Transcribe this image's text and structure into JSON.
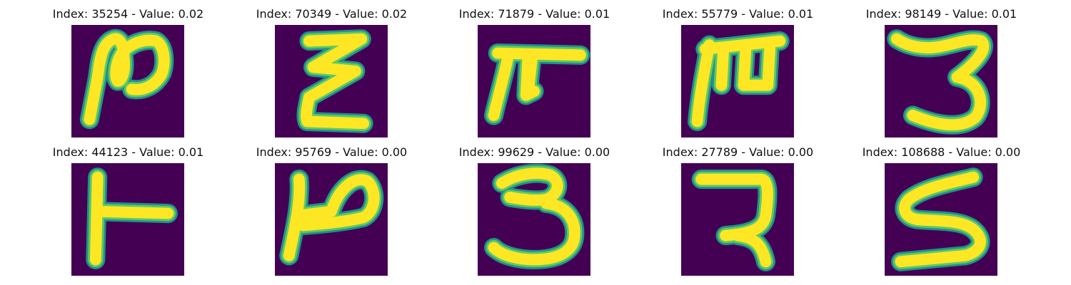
{
  "colors": {
    "background": "#440154",
    "edge": "#21918c",
    "mid": "#5ec962",
    "stroke": "#fde725"
  },
  "panels": [
    {
      "index": "35254",
      "value": "0.02",
      "title": "Index: 35254 - Value: 0.02"
    },
    {
      "index": "70349",
      "value": "0.02",
      "title": "Index: 70349 - Value: 0.02"
    },
    {
      "index": "71879",
      "value": "0.01",
      "title": "Index: 71879 - Value: 0.01"
    },
    {
      "index": "55779",
      "value": "0.01",
      "title": "Index: 55779 - Value: 0.01"
    },
    {
      "index": "98149",
      "value": "0.01",
      "title": "Index: 98149 - Value: 0.01"
    },
    {
      "index": "44123",
      "value": "0.01",
      "title": "Index: 44123 - Value: 0.01"
    },
    {
      "index": "95769",
      "value": "0.00",
      "title": "Index: 95769 - Value: 0.00"
    },
    {
      "index": "99629",
      "value": "0.00",
      "title": "Index: 99629 - Value: 0.00"
    },
    {
      "index": "27789",
      "value": "0.00",
      "title": "Index: 27789 - Value: 0.00"
    },
    {
      "index": "108688",
      "value": "0.00",
      "title": "Index: 108688 - Value: 0.00"
    }
  ]
}
